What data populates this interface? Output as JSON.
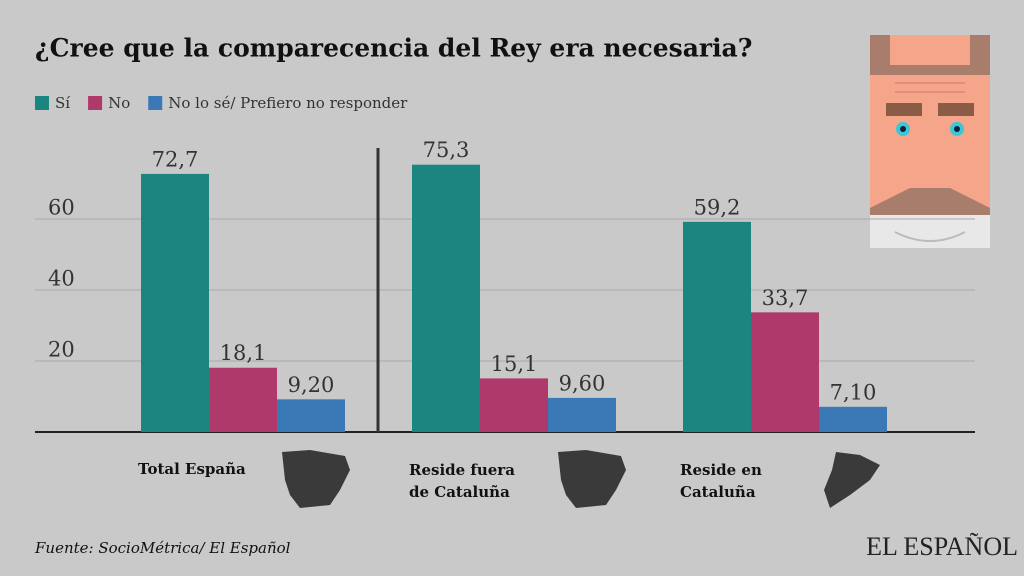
{
  "chart_data": {
    "type": "bar",
    "title": "¿Cree que la comparecencia del Rey era necesaria?",
    "categories": [
      "Total España",
      "Reside fuera de Cataluña",
      "Reside en Cataluña"
    ],
    "series": [
      {
        "name": "Sí",
        "color": "#1b8580",
        "values": [
          72.7,
          75.3,
          59.2
        ],
        "value_labels": [
          "72,7",
          "75,3",
          "59,2"
        ]
      },
      {
        "name": "No",
        "color": "#b0396b",
        "values": [
          18.1,
          15.1,
          33.7
        ],
        "value_labels": [
          "18,1",
          "15,1",
          "33,7"
        ]
      },
      {
        "name": "No lo sé/ Prefiero no responder",
        "color": "#3a78b6",
        "values": [
          9.2,
          9.6,
          7.1
        ],
        "value_labels": [
          "9,20",
          "9,60",
          "7,10"
        ]
      }
    ],
    "ylim": [
      0,
      80
    ],
    "yticks": [
      20,
      40,
      60
    ],
    "grid": true,
    "source": "Fuente: SocioMétrica/ El Español",
    "logo": "EL ESPAÑOL"
  }
}
